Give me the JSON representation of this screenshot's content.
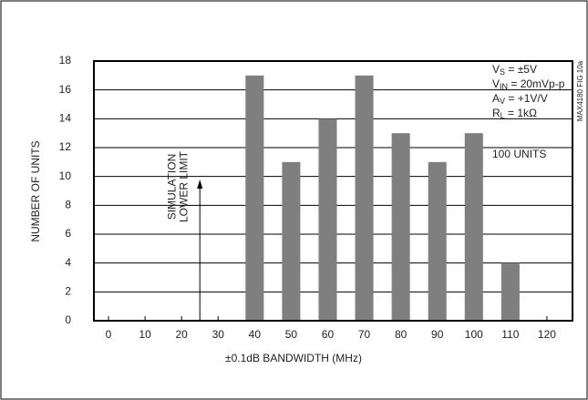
{
  "chart_data": {
    "type": "histogram",
    "x": [
      40,
      50,
      60,
      70,
      80,
      90,
      100,
      110
    ],
    "values": [
      17,
      11,
      14,
      17,
      13,
      11,
      13,
      4
    ],
    "color": "#7f7f7f",
    "xlim": [
      -4,
      127
    ],
    "xticks": [
      0,
      10,
      20,
      30,
      40,
      50,
      60,
      70,
      80,
      90,
      100,
      110,
      120
    ],
    "ylim": [
      0,
      18
    ],
    "yticks": [
      0,
      2,
      4,
      6,
      8,
      10,
      12,
      14,
      16,
      18
    ],
    "grid": true,
    "xlabel": "±0.1dB BANDWIDTH (MHz)",
    "ylabel": "NUMBER OF UNITS",
    "annotation": {
      "x": 25,
      "lines": [
        "SIMULATION",
        "LOWER LIMIT"
      ]
    },
    "conditions": [
      {
        "base": "V",
        "sub": "S",
        "rest": " = ±5V"
      },
      {
        "base": "V",
        "sub": "IN",
        "rest": " = 20mVp-p"
      },
      {
        "base": "A",
        "sub": "V",
        "rest": " = +1V/V"
      },
      {
        "base": "R",
        "sub": "L",
        "rest": " = 1kΩ"
      }
    ],
    "note": "100 UNITS",
    "figure_id": "MAX4180 FIG 10a"
  }
}
